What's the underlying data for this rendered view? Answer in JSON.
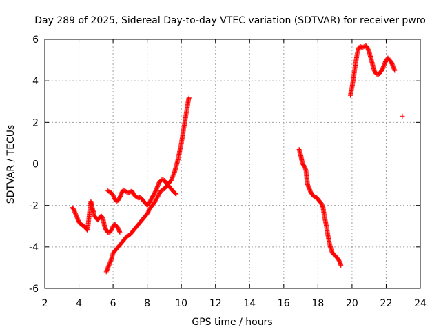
{
  "chart_data": {
    "type": "scatter",
    "title": "Day 289 of 2025, Sidereal Day-to-day VTEC variation (SDTVAR) for receiver pwro",
    "xlabel": "GPS time / hours",
    "ylabel": "SDTVAR / TECUs",
    "xlim": [
      2,
      24
    ],
    "ylim": [
      -6,
      6
    ],
    "xticks": [
      "2",
      "4",
      "6",
      "8",
      "10",
      "12",
      "14",
      "16",
      "18",
      "20",
      "22",
      "24"
    ],
    "yticks": [
      "-6",
      "-4",
      "-2",
      "0",
      "2",
      "4",
      "6"
    ],
    "grid": true,
    "marker": "+",
    "marker_color": "#ff0000",
    "series": [
      {
        "values": [
          [
            3.6,
            -2.1
          ],
          [
            3.7,
            -2.2
          ],
          [
            3.8,
            -2.4
          ],
          [
            3.9,
            -2.6
          ],
          [
            4.0,
            -2.8
          ],
          [
            4.1,
            -2.9
          ],
          [
            4.2,
            -2.95
          ],
          [
            4.3,
            -3.0
          ],
          [
            4.4,
            -3.1
          ],
          [
            4.5,
            -3.2
          ],
          [
            4.7,
            -1.8
          ],
          [
            4.75,
            -2.0
          ],
          [
            4.8,
            -2.2
          ],
          [
            4.85,
            -2.3
          ],
          [
            4.9,
            -2.5
          ],
          [
            5.0,
            -2.6
          ],
          [
            5.1,
            -2.7
          ],
          [
            5.2,
            -2.6
          ],
          [
            5.3,
            -2.5
          ],
          [
            5.4,
            -2.6
          ],
          [
            5.5,
            -3.0
          ],
          [
            5.6,
            -3.2
          ],
          [
            5.7,
            -3.3
          ],
          [
            5.8,
            -3.3
          ],
          [
            5.9,
            -3.2
          ],
          [
            6.0,
            -3.0
          ],
          [
            6.1,
            -2.9
          ],
          [
            6.2,
            -3.0
          ],
          [
            6.3,
            -3.1
          ],
          [
            6.4,
            -3.3
          ],
          [
            5.6,
            -5.2
          ],
          [
            5.7,
            -5.0
          ],
          [
            5.8,
            -4.8
          ],
          [
            5.9,
            -4.6
          ],
          [
            6.0,
            -4.3
          ],
          [
            6.2,
            -4.1
          ],
          [
            6.4,
            -3.9
          ],
          [
            6.6,
            -3.7
          ],
          [
            6.8,
            -3.5
          ],
          [
            7.0,
            -3.4
          ],
          [
            7.2,
            -3.2
          ],
          [
            7.4,
            -3.0
          ],
          [
            7.6,
            -2.8
          ],
          [
            7.8,
            -2.6
          ],
          [
            8.0,
            -2.4
          ],
          [
            8.2,
            -2.1
          ],
          [
            8.4,
            -1.9
          ],
          [
            8.6,
            -1.6
          ],
          [
            8.8,
            -1.3
          ],
          [
            9.0,
            -1.2
          ],
          [
            9.2,
            -1.0
          ],
          [
            9.4,
            -0.8
          ],
          [
            9.6,
            -0.4
          ],
          [
            9.7,
            -0.1
          ],
          [
            9.8,
            0.2
          ],
          [
            9.9,
            0.6
          ],
          [
            10.0,
            1.0
          ],
          [
            10.1,
            1.5
          ],
          [
            10.2,
            2.0
          ],
          [
            10.3,
            2.5
          ],
          [
            10.4,
            3.0
          ],
          [
            10.45,
            3.2
          ],
          [
            5.7,
            -1.3
          ],
          [
            5.8,
            -1.35
          ],
          [
            5.9,
            -1.4
          ],
          [
            6.0,
            -1.5
          ],
          [
            6.1,
            -1.7
          ],
          [
            6.2,
            -1.8
          ],
          [
            6.3,
            -1.75
          ],
          [
            6.4,
            -1.6
          ],
          [
            6.5,
            -1.4
          ],
          [
            6.6,
            -1.25
          ],
          [
            6.7,
            -1.3
          ],
          [
            6.8,
            -1.35
          ],
          [
            6.9,
            -1.4
          ],
          [
            7.0,
            -1.35
          ],
          [
            7.1,
            -1.3
          ],
          [
            7.2,
            -1.45
          ],
          [
            7.3,
            -1.55
          ],
          [
            7.4,
            -1.6
          ],
          [
            7.5,
            -1.65
          ],
          [
            7.6,
            -1.6
          ],
          [
            7.7,
            -1.7
          ],
          [
            7.8,
            -1.8
          ],
          [
            7.9,
            -1.9
          ],
          [
            8.0,
            -2.0
          ],
          [
            8.1,
            -1.9
          ],
          [
            8.2,
            -1.75
          ],
          [
            8.3,
            -1.6
          ],
          [
            8.4,
            -1.45
          ],
          [
            8.5,
            -1.3
          ],
          [
            8.6,
            -1.1
          ],
          [
            8.7,
            -0.9
          ],
          [
            8.8,
            -0.8
          ],
          [
            8.9,
            -0.75
          ],
          [
            9.0,
            -0.8
          ],
          [
            9.1,
            -0.9
          ],
          [
            9.2,
            -1.0
          ],
          [
            9.3,
            -1.1
          ],
          [
            9.4,
            -1.2
          ],
          [
            9.5,
            -1.3
          ],
          [
            9.6,
            -1.4
          ],
          [
            9.7,
            -1.45
          ],
          [
            16.9,
            0.7
          ],
          [
            17.0,
            0.4
          ],
          [
            17.05,
            0.2
          ],
          [
            17.1,
            0.0
          ],
          [
            17.2,
            -0.1
          ],
          [
            17.3,
            -0.3
          ],
          [
            17.35,
            -0.7
          ],
          [
            17.4,
            -1.0
          ],
          [
            17.5,
            -1.2
          ],
          [
            17.6,
            -1.4
          ],
          [
            17.7,
            -1.5
          ],
          [
            17.8,
            -1.6
          ],
          [
            17.9,
            -1.6
          ],
          [
            18.0,
            -1.7
          ],
          [
            18.1,
            -1.8
          ],
          [
            18.2,
            -1.9
          ],
          [
            18.3,
            -2.1
          ],
          [
            18.4,
            -2.6
          ],
          [
            18.5,
            -3.0
          ],
          [
            18.6,
            -3.5
          ],
          [
            18.7,
            -3.9
          ],
          [
            18.8,
            -4.2
          ],
          [
            18.9,
            -4.35
          ],
          [
            19.0,
            -4.4
          ],
          [
            19.1,
            -4.5
          ],
          [
            19.2,
            -4.6
          ],
          [
            19.3,
            -4.75
          ],
          [
            19.35,
            -4.9
          ],
          [
            19.9,
            3.3
          ],
          [
            20.0,
            3.7
          ],
          [
            20.1,
            4.2
          ],
          [
            20.2,
            4.8
          ],
          [
            20.3,
            5.3
          ],
          [
            20.4,
            5.6
          ],
          [
            20.5,
            5.65
          ],
          [
            20.6,
            5.6
          ],
          [
            20.7,
            5.65
          ],
          [
            20.8,
            5.7
          ],
          [
            20.9,
            5.6
          ],
          [
            21.0,
            5.4
          ],
          [
            21.1,
            5.1
          ],
          [
            21.2,
            4.8
          ],
          [
            21.3,
            4.5
          ],
          [
            21.4,
            4.35
          ],
          [
            21.5,
            4.3
          ],
          [
            21.6,
            4.35
          ],
          [
            21.7,
            4.45
          ],
          [
            21.8,
            4.6
          ],
          [
            21.9,
            4.8
          ],
          [
            22.0,
            5.0
          ],
          [
            22.1,
            5.1
          ],
          [
            22.2,
            5.0
          ],
          [
            22.3,
            4.9
          ],
          [
            22.4,
            4.7
          ],
          [
            22.5,
            4.5
          ],
          [
            22.95,
            2.3
          ]
        ]
      }
    ]
  }
}
